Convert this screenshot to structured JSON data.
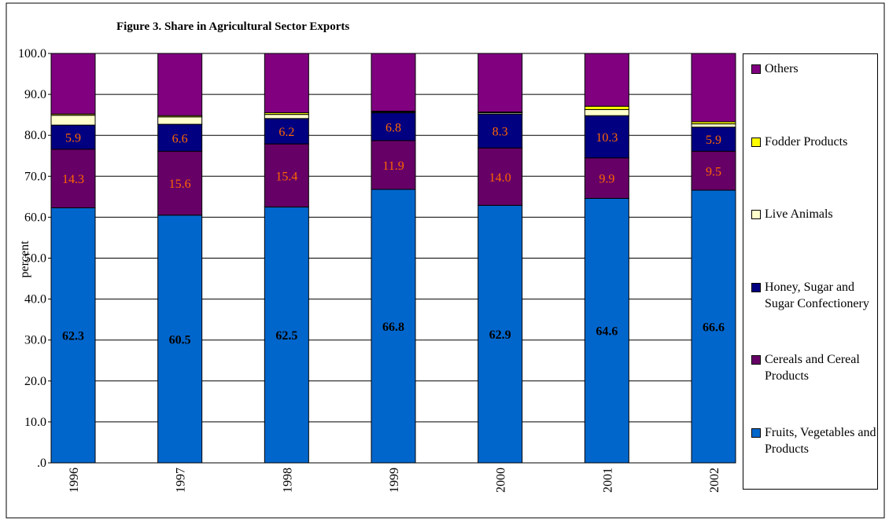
{
  "chart_data": {
    "type": "stacked-bar",
    "title": "Figure 3. Share in Agricultural Sector Exports",
    "y_label": "percent",
    "categories": [
      "1996",
      "1997",
      "1998",
      "1999",
      "2000",
      "2001",
      "2002"
    ],
    "ylim": [
      0,
      100
    ],
    "yticks": [
      {
        "value": 0,
        "label": ".0"
      },
      {
        "value": 10,
        "label": "10.0"
      },
      {
        "value": 20,
        "label": "20.0"
      },
      {
        "value": 30,
        "label": "30.0"
      },
      {
        "value": 40,
        "label": "40.0"
      },
      {
        "value": 50,
        "label": "50.0"
      },
      {
        "value": 60,
        "label": "60.0"
      },
      {
        "value": 70,
        "label": "70.0"
      },
      {
        "value": 80,
        "label": "80.0"
      },
      {
        "value": 90,
        "label": "90.0"
      },
      {
        "value": 100,
        "label": "100.0"
      }
    ],
    "grid": true,
    "series": [
      {
        "name": "Fruits, Vegetables and Products",
        "color": "#0066cc",
        "label_color": "#000000",
        "values": [
          62.3,
          60.5,
          62.5,
          66.8,
          62.9,
          64.6,
          66.6
        ],
        "value_labels": [
          "62.3",
          "60.5",
          "62.5",
          "66.8",
          "62.9",
          "64.6",
          "66.6"
        ]
      },
      {
        "name": "Cereals and Cereal Products",
        "color": "#660066",
        "label_color": "#ff6600",
        "values": [
          14.3,
          15.6,
          15.4,
          11.9,
          14.0,
          9.9,
          9.5
        ],
        "value_labels": [
          "14.3",
          "15.6",
          "15.4",
          "11.9",
          "14.0",
          "9.9",
          "9.5"
        ]
      },
      {
        "name": "Honey, Sugar and Sugar Confectionery",
        "color": "#000080",
        "label_color": "#ff6600",
        "values": [
          5.9,
          6.6,
          6.2,
          6.8,
          8.3,
          10.3,
          5.9
        ],
        "value_labels": [
          "5.9",
          "6.6",
          "6.2",
          "6.8",
          "8.3",
          "10.3",
          "5.9"
        ]
      },
      {
        "name": "Live Animals",
        "color": "#ffffcc",
        "values": [
          2.4,
          1.8,
          1.0,
          0.2,
          0.3,
          1.5,
          0.8
        ]
      },
      {
        "name": "Fodder Products",
        "color": "#ffff00",
        "values": [
          0.3,
          0.3,
          0.4,
          0.2,
          0.2,
          0.8,
          0.5
        ]
      },
      {
        "name": "Others",
        "color": "#800080",
        "values": [
          14.8,
          15.2,
          14.5,
          14.1,
          14.3,
          12.9,
          16.7
        ]
      }
    ]
  }
}
